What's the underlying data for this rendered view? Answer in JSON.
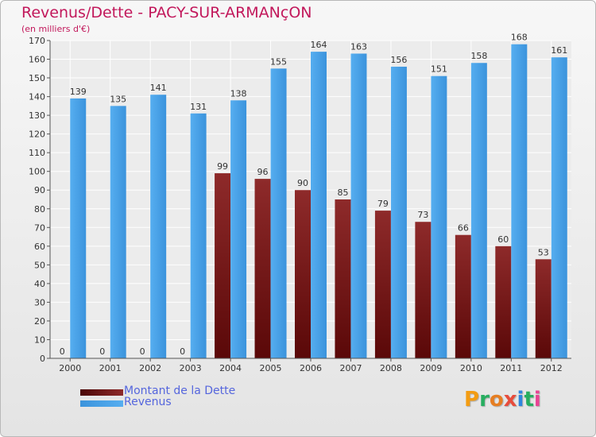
{
  "header": {
    "title": "Revenus/Dette - PACY-SUR-ARMANçON",
    "subtitle": "(en milliers d'€)"
  },
  "logo": {
    "text": "Proxiti",
    "colors": [
      "#f39c12",
      "#27ae60",
      "#e67e22",
      "#e74c3c",
      "#2e86de",
      "#27ae60",
      "#e84393"
    ]
  },
  "colors": {
    "dette": "#7a1212",
    "revenus": "#4aa3e8"
  },
  "chart_data": {
    "type": "bar",
    "title": "Revenus/Dette - PACY-SUR-ARMANçON",
    "subtitle": "(en milliers d'€)",
    "categories": [
      "2000",
      "2001",
      "2002",
      "2003",
      "2004",
      "2005",
      "2006",
      "2007",
      "2008",
      "2009",
      "2010",
      "2011",
      "2012"
    ],
    "series": [
      {
        "name": "Montant de la Dette",
        "values": [
          0,
          0,
          0,
          0,
          99,
          96,
          90,
          85,
          79,
          73,
          66,
          60,
          53
        ]
      },
      {
        "name": "Revenus",
        "values": [
          139,
          135,
          141,
          131,
          138,
          155,
          164,
          163,
          156,
          151,
          158,
          168,
          161
        ]
      }
    ],
    "ylim": [
      0,
      170
    ],
    "yticks": [
      0,
      10,
      20,
      30,
      40,
      50,
      60,
      70,
      80,
      90,
      100,
      110,
      120,
      130,
      140,
      150,
      160,
      170
    ],
    "grid": true,
    "legend_position": "bottom-left"
  }
}
